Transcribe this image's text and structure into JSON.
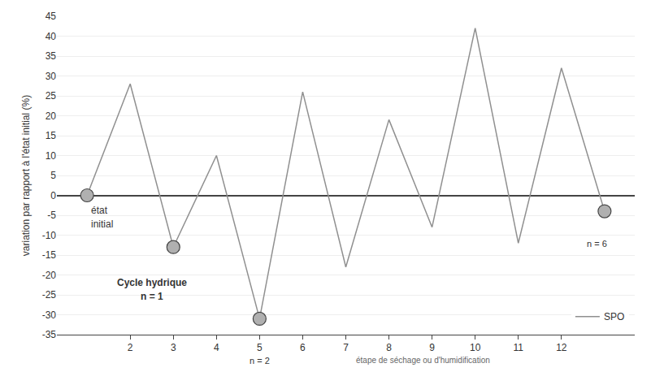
{
  "chart_data": {
    "type": "line",
    "ylabel": "variation par rapport à l'état initial (%)",
    "series": [
      {
        "name": "SPO",
        "color": "#909090",
        "x": [
          1,
          2,
          3,
          4,
          5,
          6,
          7,
          8,
          9,
          10,
          11,
          12,
          13
        ],
        "values": [
          0,
          28,
          -13,
          10,
          -31,
          26,
          -18,
          19,
          -8,
          42,
          -12,
          32,
          -4
        ]
      },
      {
        "type": "scatter",
        "marker": "circle",
        "color": "#b0b0b0",
        "x": [
          1,
          3,
          5,
          13
        ],
        "values": [
          0,
          -13,
          -31,
          -4
        ]
      }
    ],
    "xlim": [
      0.3,
      13.7
    ],
    "xticks": [
      2,
      3,
      4,
      5,
      6,
      7,
      8,
      9,
      10,
      11,
      12
    ],
    "ylim": [
      -35,
      45
    ],
    "yticks": [
      -35,
      -30,
      -25,
      -20,
      -15,
      -10,
      -5,
      0,
      5,
      10,
      15,
      20,
      25,
      30,
      35,
      40,
      45
    ],
    "grid": true,
    "legend": "lower right",
    "annotations": [
      {
        "text": "état",
        "x": 1.05,
        "y": -2.0
      },
      {
        "text": "initial",
        "x": 1.05,
        "y": -5.5
      },
      {
        "text": "Cycle hydrique",
        "x": 2.5,
        "y": -20
      },
      {
        "text": "n = 1",
        "x": 2.5,
        "y": -23.5
      },
      {
        "text": "n = 6",
        "x": 12.55,
        "y": -10.5
      },
      {
        "text": "n = 2",
        "x": 5.0,
        "y": -37.5
      },
      {
        "text": "étape de séchage ou d'humidification",
        "x": 7.2,
        "y": -37.5
      }
    ]
  }
}
